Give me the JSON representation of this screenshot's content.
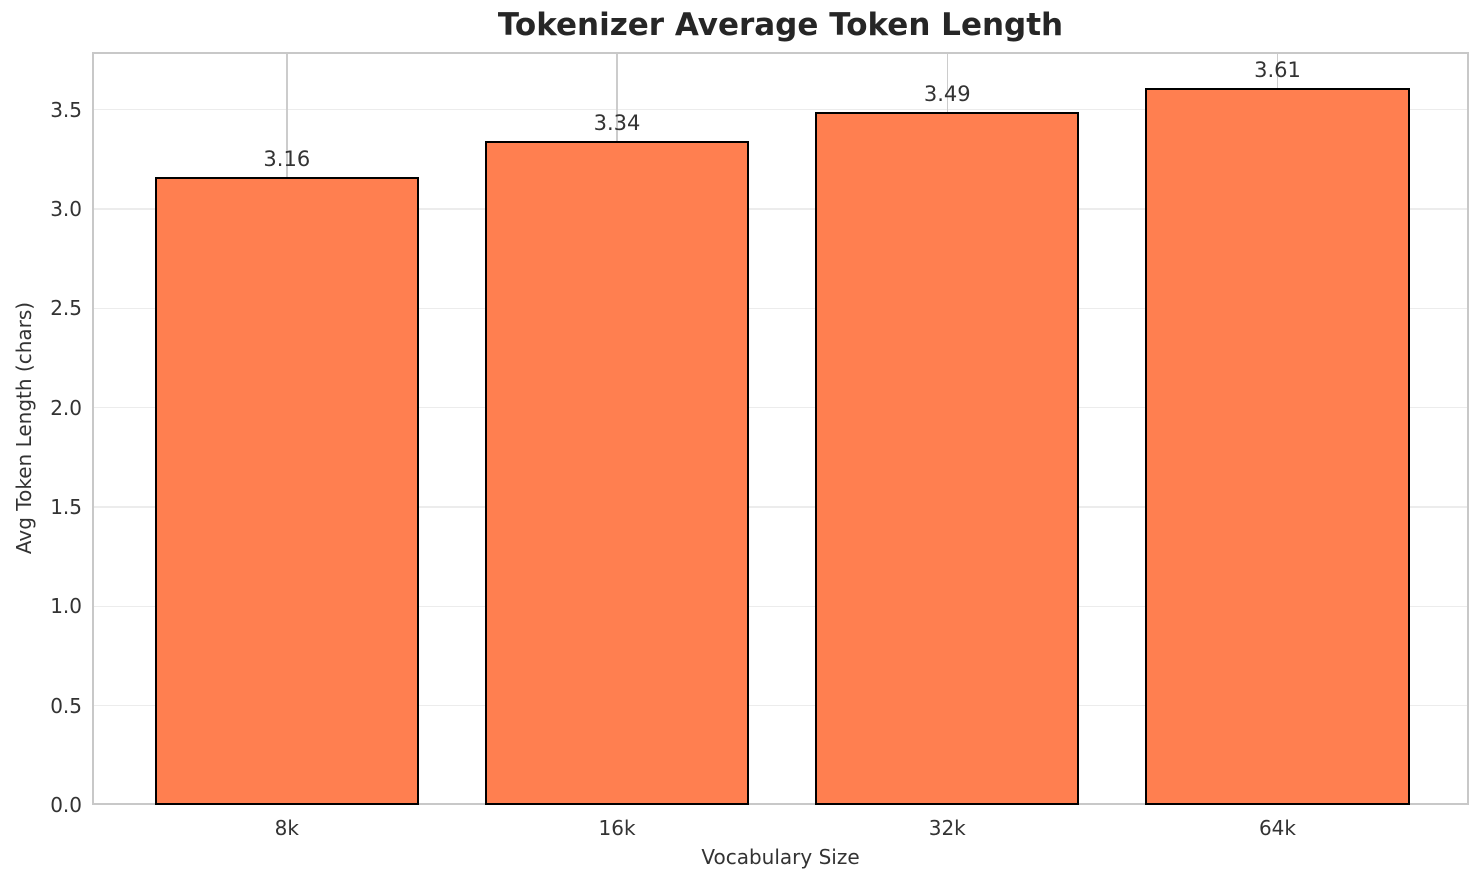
{
  "chart_data": {
    "type": "bar",
    "title": "Tokenizer Average Token Length",
    "xlabel": "Vocabulary Size",
    "ylabel": "Avg Token Length (chars)",
    "categories": [
      "8k",
      "16k",
      "32k",
      "64k"
    ],
    "values": [
      3.16,
      3.34,
      3.49,
      3.61
    ],
    "value_labels": [
      "3.16",
      "3.34",
      "3.49",
      "3.61"
    ],
    "yticks": [
      "0.0",
      "0.5",
      "1.0",
      "1.5",
      "2.0",
      "2.5",
      "3.0",
      "3.5"
    ],
    "ytick_values": [
      0,
      0.5,
      1,
      1.5,
      2,
      2.5,
      3,
      3.5
    ],
    "ylim": [
      0,
      3.79
    ],
    "xlim": [
      -0.59,
      3.58
    ],
    "bar_width": 0.8,
    "grid": true,
    "legend": "none",
    "colors": {
      "bar_fill": "#FF7F50",
      "bar_edge": "#000000",
      "grid_h": "#ececec",
      "grid_v": "#cccccc",
      "spine": "#c8c8c8",
      "title_text": "#262626",
      "label_text": "#333333"
    }
  }
}
